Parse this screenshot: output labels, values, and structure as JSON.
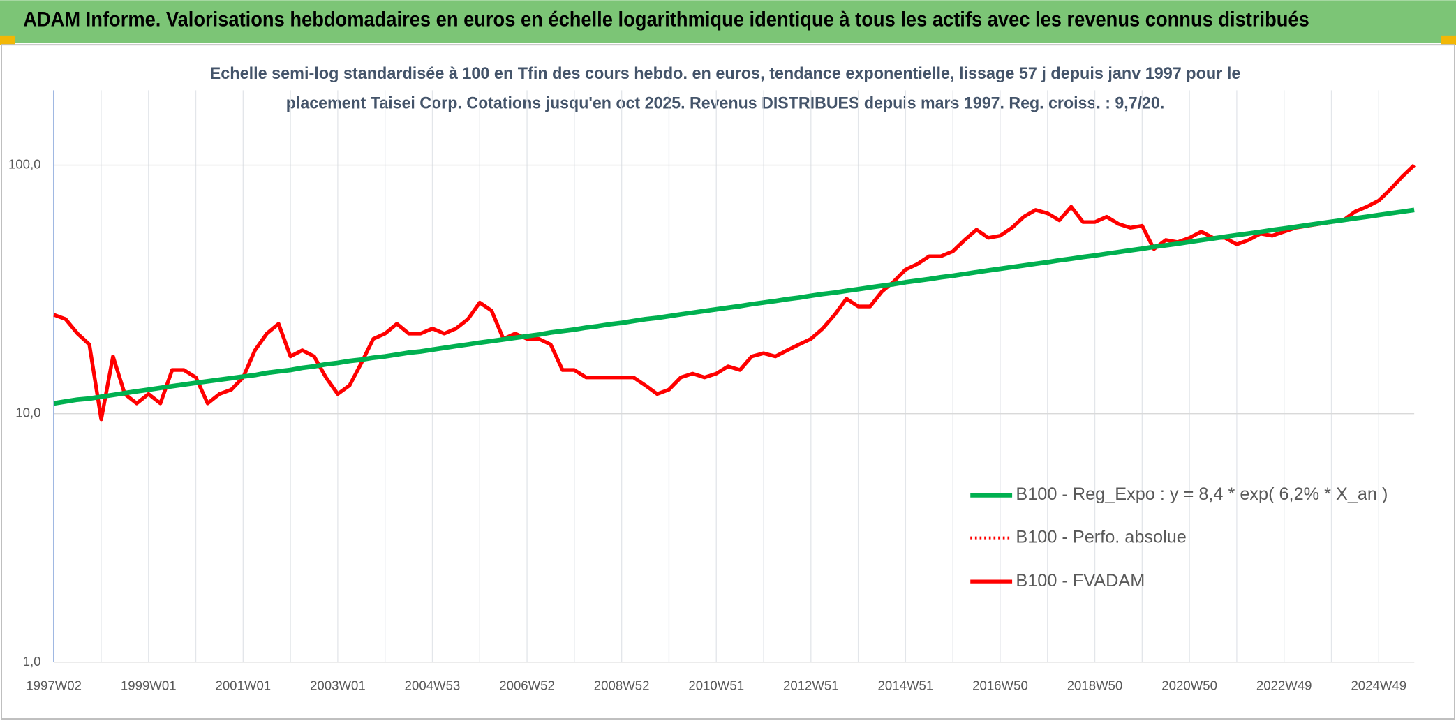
{
  "chart_data": {
    "type": "line",
    "title": "ADAM Informe. Valorisations hebdomadaires en euros en échelle logarithmique identique à tous les actifs avec les revenus connus distribués",
    "subtitle": [
      "Echelle semi-log standardisée à 100 en Tfin des cours hebdo. en euros, tendance exponentielle, lissage 57 j depuis janv 1997 pour le",
      "placement Taisei Corp. Cotations jusqu'en oct 2025. Revenus DISTRIBUES depuis mars 1997. Reg. croiss. : 9,7/20."
    ],
    "log_scale": true,
    "ylim": [
      1,
      200
    ],
    "yticks": [
      {
        "value": 1,
        "label": "1,0"
      },
      {
        "value": 10,
        "label": "10,0"
      },
      {
        "value": 100,
        "label": "100,0"
      }
    ],
    "grid": true,
    "legend": "right",
    "categories": [
      "1997W02",
      null,
      null,
      null,
      null,
      null,
      null,
      null,
      "1999W01",
      null,
      null,
      null,
      null,
      null,
      null,
      null,
      "2001W01",
      null,
      null,
      null,
      null,
      null,
      null,
      null,
      "2003W01",
      null,
      null,
      null,
      null,
      null,
      null,
      null,
      "2004W53",
      null,
      null,
      null,
      null,
      null,
      null,
      null,
      "2006W52",
      null,
      null,
      null,
      null,
      null,
      null,
      null,
      "2008W52",
      null,
      null,
      null,
      null,
      null,
      null,
      null,
      "2010W51",
      null,
      null,
      null,
      null,
      null,
      null,
      null,
      "2012W51",
      null,
      null,
      null,
      null,
      null,
      null,
      null,
      "2014W51",
      null,
      null,
      null,
      null,
      null,
      null,
      null,
      "2016W50",
      null,
      null,
      null,
      null,
      null,
      null,
      null,
      "2018W50",
      null,
      null,
      null,
      null,
      null,
      null,
      null,
      "2020W50",
      null,
      null,
      null,
      null,
      null,
      null,
      null,
      "2022W49",
      null,
      null,
      null,
      null,
      null,
      null,
      null,
      "2024W49",
      null,
      null,
      null
    ],
    "series": [
      {
        "name": "B100 - Reg_Expo : y = 8,4 * exp( 6,2% *  X_an )",
        "color": "#00b050",
        "style": "solid",
        "width": 5,
        "values": [
          11.0,
          11.2,
          11.4,
          11.5,
          11.7,
          11.9,
          12.1,
          12.3,
          12.5,
          12.7,
          12.9,
          13.1,
          13.3,
          13.5,
          13.7,
          13.9,
          14.1,
          14.3,
          14.6,
          14.8,
          15.0,
          15.3,
          15.5,
          15.8,
          16.0,
          16.3,
          16.5,
          16.8,
          17.0,
          17.3,
          17.6,
          17.8,
          18.1,
          18.4,
          18.7,
          19.0,
          19.3,
          19.6,
          19.9,
          20.2,
          20.5,
          20.8,
          21.2,
          21.5,
          21.8,
          22.2,
          22.5,
          22.9,
          23.2,
          23.6,
          24.0,
          24.3,
          24.7,
          25.1,
          25.5,
          25.9,
          26.3,
          26.7,
          27.1,
          27.6,
          28.0,
          28.4,
          28.9,
          29.3,
          29.8,
          30.3,
          30.7,
          31.2,
          31.7,
          32.2,
          32.7,
          33.2,
          33.8,
          34.3,
          34.8,
          35.4,
          35.9,
          36.5,
          37.1,
          37.7,
          38.3,
          38.9,
          39.5,
          40.1,
          40.7,
          41.4,
          42.0,
          42.7,
          43.3,
          44.0,
          44.7,
          45.4,
          46.1,
          46.9,
          47.6,
          48.3,
          49.1,
          49.9,
          50.7,
          51.5,
          52.3,
          53.1,
          53.9,
          54.8,
          55.6,
          56.5,
          57.4,
          58.3,
          59.2,
          60.1,
          61.1,
          62.0,
          63.0,
          64.0,
          65.0,
          66.0
        ]
      },
      {
        "name": "B100 - Perfo. absolue",
        "color": "#ff0000",
        "style": "dotted",
        "width": 3,
        "values": [
          25,
          24,
          21,
          19,
          9.5,
          17,
          12,
          11,
          12,
          11,
          15,
          15,
          14,
          11,
          12,
          12.5,
          14,
          18,
          21,
          23,
          17,
          18,
          17,
          14,
          12,
          13,
          16,
          20,
          21,
          23,
          21,
          21,
          22,
          21,
          22,
          24,
          28,
          26,
          20,
          21,
          20,
          20,
          19,
          15,
          15,
          14,
          14,
          14,
          14,
          14,
          13,
          12,
          12.5,
          14,
          14.5,
          14,
          14.5,
          15.5,
          15,
          17,
          17.5,
          17,
          18,
          19,
          20,
          22,
          25,
          29,
          27,
          27,
          31,
          34,
          38,
          40,
          43,
          43,
          45,
          50,
          55,
          51,
          52,
          56,
          62,
          66,
          64,
          60,
          68,
          59,
          59,
          62,
          58,
          56,
          57,
          46,
          50,
          49,
          51,
          54,
          51,
          51,
          48,
          50,
          53,
          52,
          54,
          56,
          57,
          58,
          59,
          60,
          65,
          68,
          72,
          80,
          90,
          100
        ]
      },
      {
        "name": "B100 - FVADAM",
        "color": "#ff0000",
        "style": "solid",
        "width": 4,
        "values": [
          25,
          24,
          21,
          19,
          9.5,
          17,
          12,
          11,
          12,
          11,
          15,
          15,
          14,
          11,
          12,
          12.5,
          14,
          18,
          21,
          23,
          17,
          18,
          17,
          14,
          12,
          13,
          16,
          20,
          21,
          23,
          21,
          21,
          22,
          21,
          22,
          24,
          28,
          26,
          20,
          21,
          20,
          20,
          19,
          15,
          15,
          14,
          14,
          14,
          14,
          14,
          13,
          12,
          12.5,
          14,
          14.5,
          14,
          14.5,
          15.5,
          15,
          17,
          17.5,
          17,
          18,
          19,
          20,
          22,
          25,
          29,
          27,
          27,
          31,
          34,
          38,
          40,
          43,
          43,
          45,
          50,
          55,
          51,
          52,
          56,
          62,
          66,
          64,
          60,
          68,
          59,
          59,
          62,
          58,
          56,
          57,
          46,
          50,
          49,
          51,
          54,
          51,
          51,
          48,
          50,
          53,
          52,
          54,
          56,
          57,
          58,
          59,
          60,
          65,
          68,
          72,
          80,
          90,
          100
        ]
      }
    ]
  }
}
